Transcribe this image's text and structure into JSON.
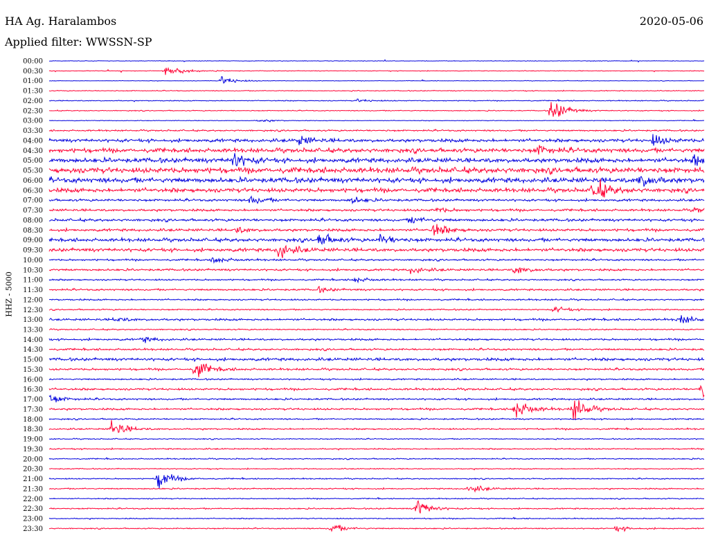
{
  "header": {
    "station": "HA Ag. Haralambos",
    "filter": "Applied filter: WWSSN-SP",
    "date": "2020-05-06"
  },
  "chart_data": {
    "type": "helicorder",
    "ylabel": "HHZ - 5000",
    "trace_colors": [
      "#0000dd",
      "#ff0033"
    ],
    "times": [
      "00:00",
      "00:30",
      "01:00",
      "01:30",
      "02:00",
      "02:30",
      "03:00",
      "03:30",
      "04:00",
      "04:30",
      "05:00",
      "05:30",
      "06:00",
      "06:30",
      "07:00",
      "07:30",
      "08:00",
      "08:30",
      "09:00",
      "09:30",
      "10:00",
      "10:30",
      "11:00",
      "11:30",
      "12:00",
      "12:30",
      "13:00",
      "13:30",
      "14:00",
      "14:30",
      "15:00",
      "15:30",
      "16:00",
      "16:30",
      "17:00",
      "17:30",
      "18:00",
      "18:30",
      "19:00",
      "19:30",
      "20:00",
      "20:30",
      "21:00",
      "21:30",
      "22:00",
      "22:30",
      "23:00",
      "23:30"
    ],
    "noise": [
      0.4,
      0.5,
      0.4,
      0.6,
      0.7,
      0.7,
      0.5,
      1.2,
      2.5,
      3.2,
      3.5,
      4.2,
      3.8,
      3.2,
      1.8,
      1.8,
      2.0,
      2.0,
      2.6,
      2.6,
      1.4,
      1.6,
      1.2,
      1.4,
      1.2,
      1.0,
      1.6,
      1.0,
      1.5,
      1.5,
      2.2,
      1.6,
      1.2,
      1.6,
      1.4,
      1.5,
      1.1,
      1.2,
      0.8,
      1.0,
      0.9,
      0.8,
      0.9,
      1.0,
      0.8,
      1.0,
      0.8,
      0.9
    ],
    "events": [
      {
        "row": 1,
        "t": 0.175,
        "amp": 1.0
      },
      {
        "row": 2,
        "t": 0.263,
        "amp": 0.6
      },
      {
        "row": 4,
        "t": 0.47,
        "amp": 0.2
      },
      {
        "row": 5,
        "t": 0.766,
        "amp": 1.6
      },
      {
        "row": 6,
        "t": 0.32,
        "amp": 0.2
      },
      {
        "row": 8,
        "t": 0.38,
        "amp": 0.6
      },
      {
        "row": 8,
        "t": 0.92,
        "amp": 0.8
      },
      {
        "row": 9,
        "t": 0.745,
        "amp": 0.7
      },
      {
        "row": 10,
        "t": 0.28,
        "amp": 1.1
      },
      {
        "row": 10,
        "t": 0.985,
        "amp": 0.6
      },
      {
        "row": 12,
        "t": 0.9,
        "amp": 1.0
      },
      {
        "row": 13,
        "t": 0.83,
        "amp": 1.6
      },
      {
        "row": 14,
        "t": 0.305,
        "amp": 0.6
      },
      {
        "row": 14,
        "t": 0.46,
        "amp": 0.4
      },
      {
        "row": 15,
        "t": 0.59,
        "amp": 0.3
      },
      {
        "row": 15,
        "t": 0.985,
        "amp": 0.3
      },
      {
        "row": 16,
        "t": 0.55,
        "amp": 0.5
      },
      {
        "row": 17,
        "t": 0.585,
        "amp": 1.0
      },
      {
        "row": 17,
        "t": 0.285,
        "amp": 0.4
      },
      {
        "row": 18,
        "t": 0.41,
        "amp": 0.9
      },
      {
        "row": 18,
        "t": 0.505,
        "amp": 0.6
      },
      {
        "row": 19,
        "t": 0.348,
        "amp": 1.2
      },
      {
        "row": 20,
        "t": 0.25,
        "amp": 0.5
      },
      {
        "row": 21,
        "t": 0.55,
        "amp": 0.5
      },
      {
        "row": 21,
        "t": 0.71,
        "amp": 0.6
      },
      {
        "row": 22,
        "t": 0.465,
        "amp": 0.4
      },
      {
        "row": 23,
        "t": 0.41,
        "amp": 0.3
      },
      {
        "row": 25,
        "t": 0.77,
        "amp": 0.4
      },
      {
        "row": 26,
        "t": 0.96,
        "amp": 0.7
      },
      {
        "row": 26,
        "t": 0.1,
        "amp": 0.3
      },
      {
        "row": 28,
        "t": 0.14,
        "amp": 0.4
      },
      {
        "row": 31,
        "t": 0.222,
        "amp": 1.4
      },
      {
        "row": 33,
        "t": 0.995,
        "amp": 1.4
      },
      {
        "row": 34,
        "t": 0.0,
        "amp": 0.6
      },
      {
        "row": 35,
        "t": 0.71,
        "amp": 1.5
      },
      {
        "row": 35,
        "t": 0.8,
        "amp": 1.5
      },
      {
        "row": 37,
        "t": 0.095,
        "amp": 1.2
      },
      {
        "row": 42,
        "t": 0.165,
        "amp": 1.5
      },
      {
        "row": 43,
        "t": 0.64,
        "amp": 0.6
      },
      {
        "row": 45,
        "t": 0.56,
        "amp": 1.3
      },
      {
        "row": 47,
        "t": 0.43,
        "amp": 0.6
      },
      {
        "row": 47,
        "t": 0.865,
        "amp": 0.4
      }
    ]
  }
}
